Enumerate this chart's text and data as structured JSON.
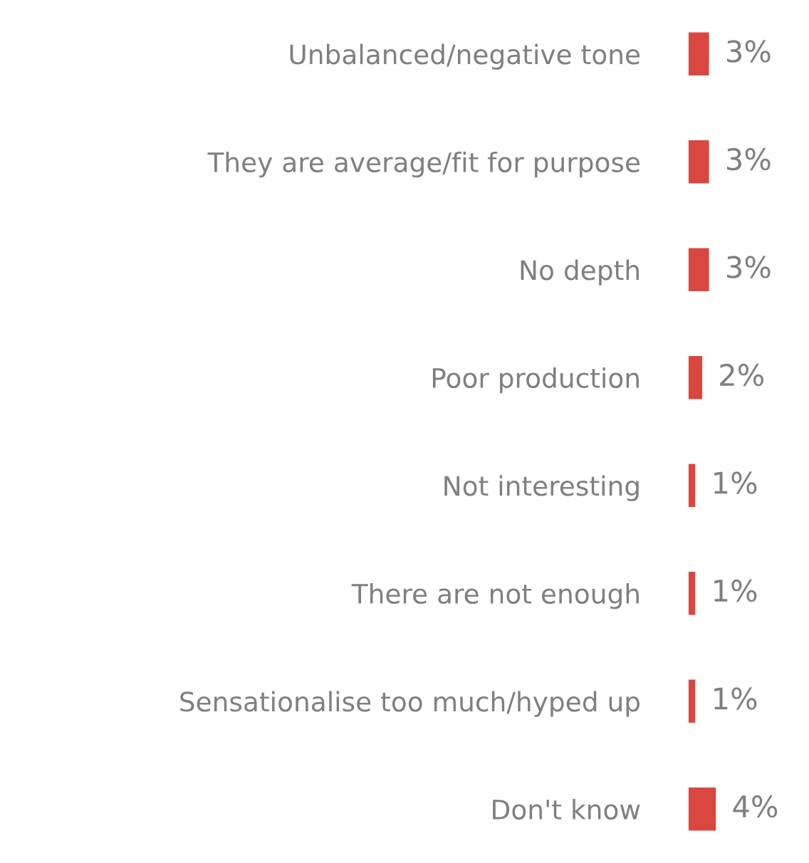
{
  "chart_data": {
    "type": "bar",
    "orientation": "horizontal",
    "categories": [
      "Unbalanced/negative tone",
      "They are average/fit for purpose",
      "No depth",
      "Poor production",
      "Not interesting",
      "There are not enough",
      "Sensationalise too much/hyped up",
      "Don't know"
    ],
    "values": [
      3,
      3,
      3,
      2,
      1,
      1,
      1,
      4
    ],
    "value_labels": [
      "3%",
      "3%",
      "3%",
      "2%",
      "1%",
      "1%",
      "1%",
      "4%"
    ],
    "color": "#d9473f",
    "grid": false,
    "legend": false
  }
}
